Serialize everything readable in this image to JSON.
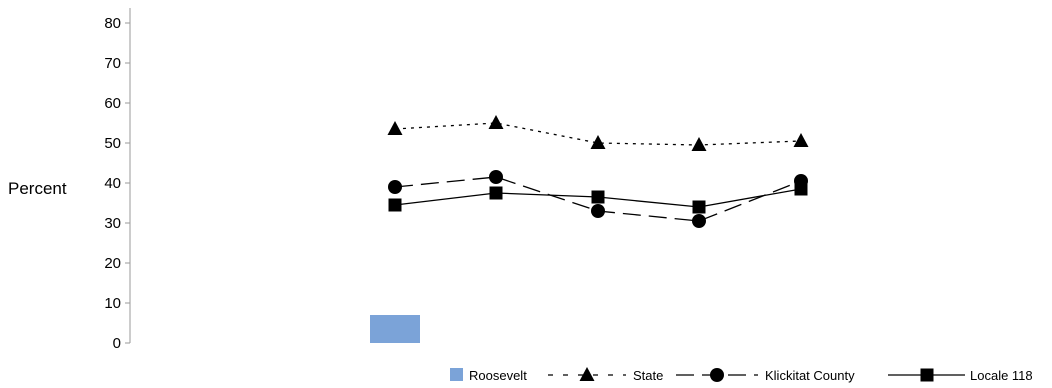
{
  "chart_data": {
    "type": "line",
    "ylabel": "Percent",
    "ylim": [
      0,
      80
    ],
    "yticks": [
      0,
      10,
      20,
      30,
      40,
      50,
      60,
      70,
      80
    ],
    "categories": [
      "",
      "",
      "",
      "",
      ""
    ],
    "series": [
      {
        "name": "Roosevelt",
        "type": "bar",
        "color": "#7BA3D8",
        "values": [
          7,
          null,
          null,
          null,
          null
        ]
      },
      {
        "name": "State",
        "type": "line",
        "dash": "short",
        "marker": "triangle",
        "color": "#000000",
        "values": [
          53.5,
          55,
          50,
          49.5,
          50.5
        ]
      },
      {
        "name": "Klickitat County",
        "type": "line",
        "dash": "long",
        "marker": "circle",
        "color": "#000000",
        "values": [
          39,
          41.5,
          33,
          30.5,
          40.5
        ]
      },
      {
        "name": "Locale 118",
        "type": "line",
        "dash": "solid",
        "marker": "square",
        "color": "#000000",
        "values": [
          34.5,
          37.5,
          36.5,
          34,
          38.5
        ]
      }
    ],
    "legend": "bottom-right",
    "grid": false
  }
}
